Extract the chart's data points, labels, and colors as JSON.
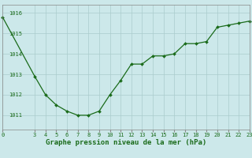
{
  "x": [
    0,
    3,
    4,
    5,
    6,
    7,
    8,
    9,
    10,
    11,
    12,
    13,
    14,
    15,
    16,
    17,
    18,
    19,
    20,
    21,
    22,
    23
  ],
  "y": [
    1015.8,
    1012.9,
    1012.0,
    1011.5,
    1011.2,
    1011.0,
    1011.0,
    1011.2,
    1012.0,
    1012.7,
    1013.5,
    1013.5,
    1013.9,
    1013.9,
    1014.0,
    1014.5,
    1014.5,
    1014.6,
    1015.3,
    1015.4,
    1015.5,
    1015.6
  ],
  "line_color": "#1a6b1a",
  "marker": "D",
  "marker_size": 2.0,
  "bg_color": "#cce8ea",
  "grid_color": "#aacccc",
  "yticks": [
    1011,
    1012,
    1013,
    1014,
    1015,
    1016
  ],
  "xticks": [
    0,
    3,
    4,
    5,
    6,
    7,
    8,
    9,
    10,
    11,
    12,
    13,
    14,
    15,
    16,
    17,
    18,
    19,
    20,
    21,
    22,
    23
  ],
  "ylim": [
    1010.3,
    1016.4
  ],
  "xlim": [
    0,
    23
  ],
  "tick_fontsize": 5.0,
  "title": "Graphe pression niveau de la mer (hPa)",
  "title_fontsize": 6.5,
  "tick_color": "#1a6b1a",
  "axis_color": "#888888",
  "linewidth": 0.9
}
